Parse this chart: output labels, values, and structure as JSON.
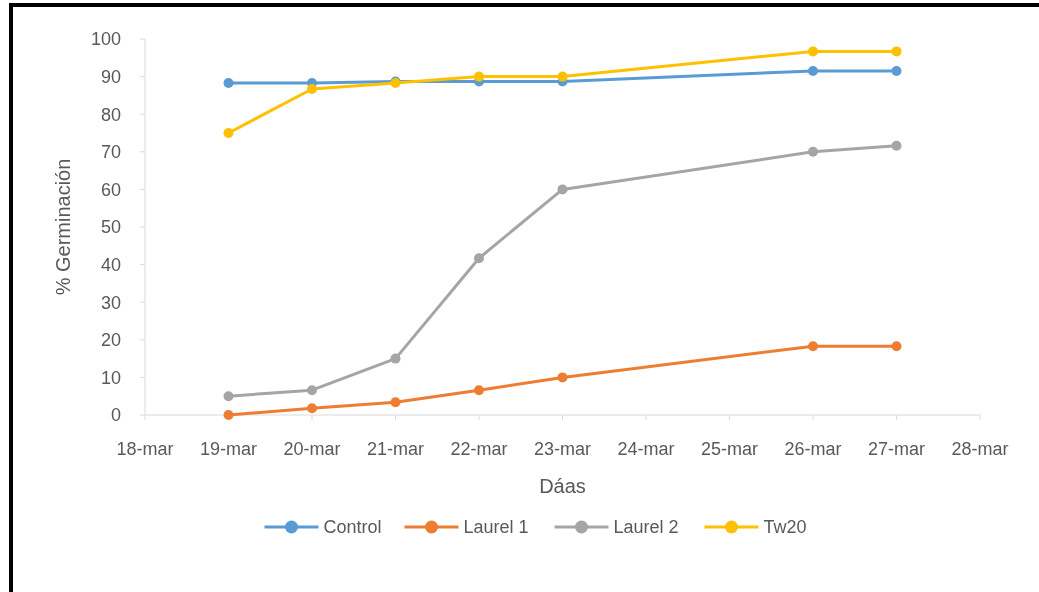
{
  "chart_data": {
    "type": "line",
    "xlabel": "Dáas",
    "ylabel": "% Germinación",
    "x": [
      "--03-19",
      "--03-20",
      "--03-21",
      "--03-22",
      "--03-23",
      "--03-26",
      "--03-27"
    ],
    "xlim": [
      "--03-18",
      "--03-28"
    ],
    "xticks": [
      {
        "value": "--03-18",
        "label": "18-mar"
      },
      {
        "value": "--03-19",
        "label": "19-mar"
      },
      {
        "value": "--03-20",
        "label": "20-mar"
      },
      {
        "value": "--03-21",
        "label": "21-mar"
      },
      {
        "value": "--03-22",
        "label": "22-mar"
      },
      {
        "value": "--03-23",
        "label": "23-mar"
      },
      {
        "value": "--03-24",
        "label": "24-mar"
      },
      {
        "value": "--03-25",
        "label": "25-mar"
      },
      {
        "value": "--03-26",
        "label": "26-mar"
      },
      {
        "value": "--03-27",
        "label": "27-mar"
      },
      {
        "value": "--03-28",
        "label": "28-mar"
      }
    ],
    "ylim": [
      0,
      100
    ],
    "yticks": [
      0,
      10,
      20,
      30,
      40,
      50,
      60,
      70,
      80,
      90,
      100
    ],
    "grid": false,
    "legend": "bottom",
    "marker": "circle",
    "line_style": "solid",
    "series": [
      {
        "name": "Control",
        "color": "#5b9bd5",
        "values": [
          88.3,
          88.3,
          88.7,
          88.7,
          88.7,
          91.5,
          91.5
        ]
      },
      {
        "name": "Laurel 1",
        "color": "#ed7d31",
        "values": [
          0,
          1.8,
          3.4,
          6.6,
          10,
          18.3,
          18.3
        ]
      },
      {
        "name": "Laurel 2",
        "color": "#a5a5a5",
        "values": [
          5,
          6.6,
          15,
          41.7,
          60,
          70,
          71.6
        ]
      },
      {
        "name": "Tw20",
        "color": "#ffc000",
        "values": [
          75,
          86.7,
          88.3,
          90,
          90,
          96.7,
          96.7
        ]
      }
    ]
  }
}
